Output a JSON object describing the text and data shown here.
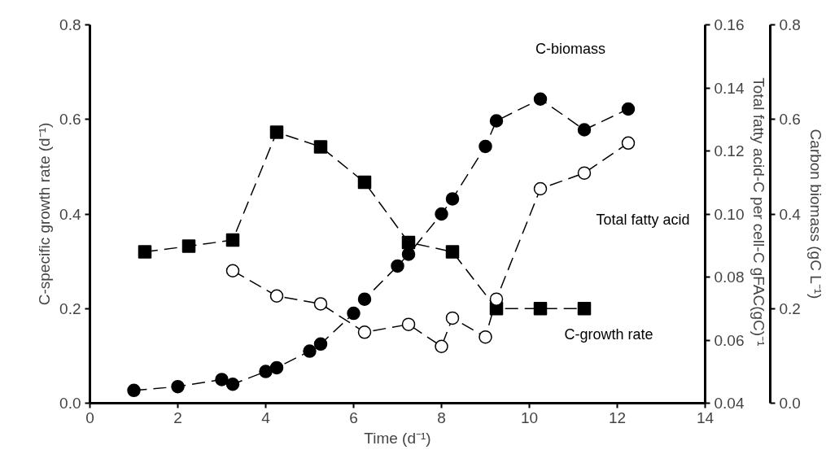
{
  "chart_data": {
    "type": "line",
    "xlabel": "Time (d⁻¹)",
    "ylabel": "C-specific growth rate (d⁻¹)",
    "y2label": "Total fatty acid-C per cell-C  gFAC(gC)⁻¹",
    "y3label": "Carbon biomass (gC L⁻¹)",
    "xlim": [
      0,
      14
    ],
    "xticks": [
      0,
      2,
      4,
      6,
      8,
      10,
      12,
      14
    ],
    "ylim": [
      0,
      0.8
    ],
    "yticks": [
      {
        "value": 0,
        "label": "0.0"
      },
      0.2,
      0.4,
      0.6,
      0.8
    ],
    "y2lim": [
      0.04,
      0.16
    ],
    "y2ticks": [
      0.04,
      0.06,
      0.08,
      {
        "value": 0.1,
        "label": "0.10"
      },
      0.12,
      0.14,
      0.16
    ],
    "y3lim": [
      0,
      0.8
    ],
    "y3ticks": [
      {
        "value": 0,
        "label": "0.0"
      },
      0.2,
      0.4,
      0.6,
      0.8
    ],
    "grid": false,
    "line_style": "dashed",
    "series": [
      {
        "name": "C-growth rate",
        "color": "#000000",
        "marker": "square",
        "x": [
          1.25,
          2.25,
          3.25,
          4.25,
          5.25,
          6.25,
          7.25,
          8.25,
          9.25,
          10.25,
          11.25
        ],
        "values": [
          0.32,
          0.332,
          0.345,
          0.573,
          0.542,
          0.467,
          0.34,
          0.32,
          0.2,
          0.2,
          0.2
        ]
      },
      {
        "name": "Total fatty acid",
        "color": "#000000",
        "marker": "circle",
        "axis": "y2",
        "x": [
          3.25,
          4.25,
          5.25,
          6.25,
          7.25,
          8.0,
          8.25,
          9.0,
          9.25,
          10.25,
          11.25,
          12.25
        ],
        "values": [
          0.082,
          0.074,
          0.0715,
          0.0625,
          0.065,
          0.058,
          0.067,
          0.061,
          0.073,
          0.108,
          0.113,
          0.1225
        ]
      },
      {
        "name": "C-biomass",
        "color": "#000000",
        "marker": "circle",
        "axis": "y3",
        "x": [
          1.0,
          2.0,
          3.0,
          3.25,
          4.0,
          4.25,
          5.0,
          5.25,
          6.0,
          6.25,
          7.0,
          7.25,
          8.0,
          8.25,
          9.0,
          9.25,
          10.25,
          11.25,
          12.25
        ],
        "values": [
          0.027,
          0.035,
          0.05,
          0.04,
          0.067,
          0.075,
          0.11,
          0.125,
          0.19,
          0.22,
          0.29,
          0.315,
          0.4,
          0.432,
          0.543,
          0.597,
          0.643,
          0.578,
          0.622
        ]
      }
    ]
  }
}
